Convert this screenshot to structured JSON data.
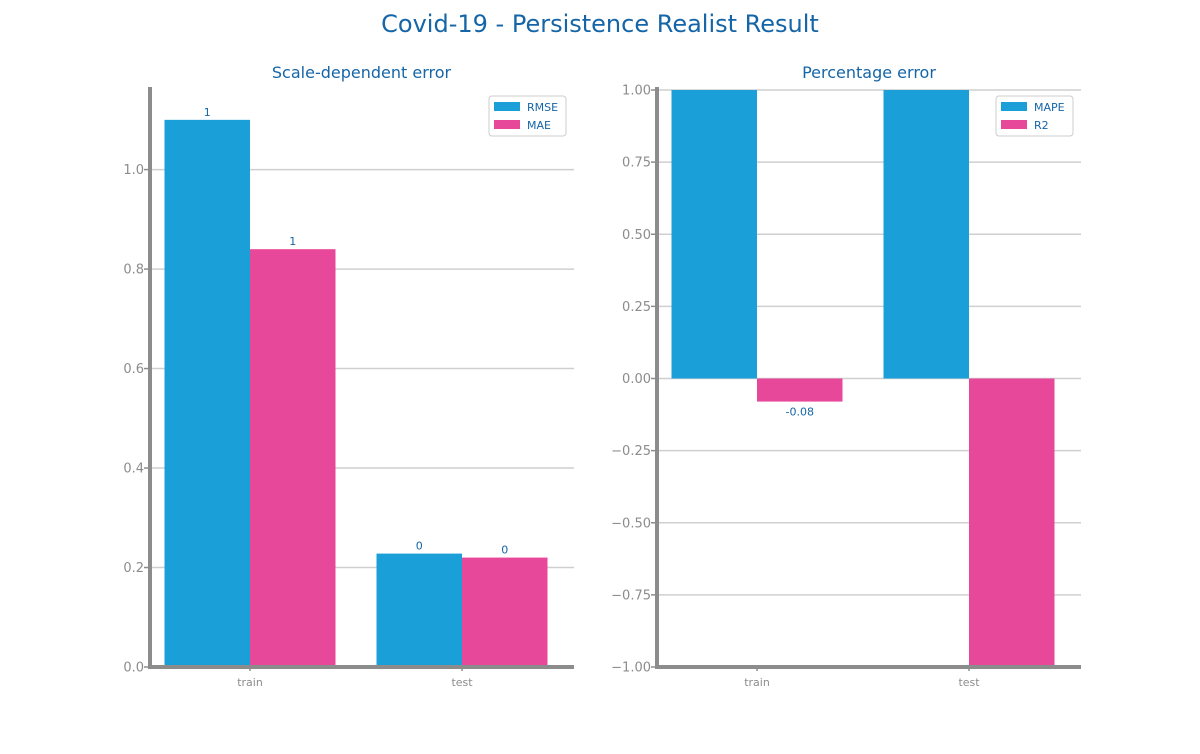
{
  "figure": {
    "title": "Covid-19 - Persistence Realist Result"
  },
  "colors": {
    "title": "#1565a7",
    "series_blue": "#1b9fd8",
    "series_pink": "#e8489a",
    "grid": "#cfcfcf",
    "axis": "#8c8c8c",
    "tick_text": "#8c8c8c"
  },
  "chart_data": [
    {
      "type": "bar",
      "title": "Scale-dependent error",
      "xlabel": "",
      "ylabel": "",
      "categories": [
        "train",
        "test"
      ],
      "series": [
        {
          "name": "RMSE",
          "values": [
            1.1,
            0.228
          ],
          "labels": [
            "1",
            "0"
          ]
        },
        {
          "name": "MAE",
          "values": [
            0.84,
            0.22
          ],
          "labels": [
            "1",
            "0"
          ]
        }
      ],
      "ylim": [
        0,
        1.16
      ],
      "yticks": [
        0.0,
        0.2,
        0.4,
        0.6,
        0.8,
        1.0
      ],
      "ytick_labels": [
        "0.0",
        "0.2",
        "0.4",
        "0.6",
        "0.8",
        "1.0"
      ],
      "grid": true,
      "legend": "top-right"
    },
    {
      "type": "bar",
      "title": "Percentage error",
      "xlabel": "",
      "ylabel": "",
      "categories": [
        "train",
        "test"
      ],
      "series": [
        {
          "name": "MAPE",
          "values": [
            1.0,
            1.0
          ],
          "labels": [
            "",
            ""
          ]
        },
        {
          "name": "R2",
          "values": [
            -0.08,
            -1.0
          ],
          "labels": [
            "-0.08",
            ""
          ]
        }
      ],
      "ylim": [
        -1.0,
        1.0
      ],
      "yticks": [
        -1.0,
        -0.75,
        -0.5,
        -0.25,
        0.0,
        0.25,
        0.5,
        0.75,
        1.0
      ],
      "ytick_labels": [
        "−1.00",
        "−0.75",
        "−0.50",
        "−0.25",
        "0.00",
        "0.25",
        "0.50",
        "0.75",
        "1.00"
      ],
      "grid": true,
      "legend": "top-right"
    }
  ]
}
